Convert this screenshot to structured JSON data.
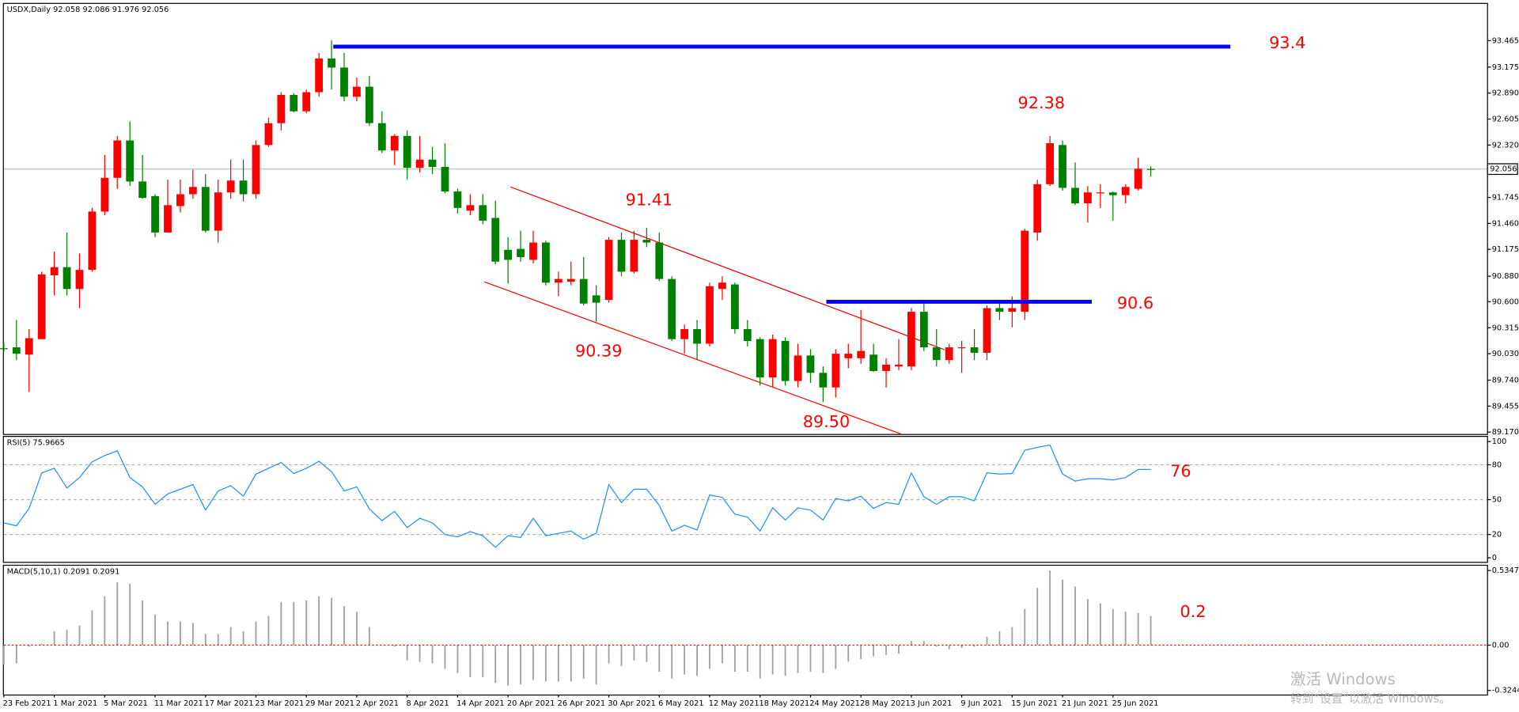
{
  "chart_data": [
    {
      "type": "candlestick",
      "title": "USDX,Daily  92.058 92.086 91.976 92.056",
      "categories": [
        "23 Feb 2021",
        null,
        null,
        null,
        "1 Mar 2021",
        null,
        null,
        null,
        "5 Mar 2021",
        null,
        null,
        null,
        "11 Mar 2021",
        null,
        null,
        null,
        "17 Mar 2021",
        null,
        null,
        null,
        "23 Mar 2021",
        null,
        null,
        null,
        "29 Mar 2021",
        null,
        null,
        null,
        "2 Apr 2021",
        null,
        null,
        null,
        "8 Apr 2021",
        null,
        null,
        null,
        "14 Apr 2021",
        null,
        null,
        null,
        "20 Apr 2021",
        null,
        null,
        null,
        "26 Apr 2021",
        null,
        null,
        null,
        "30 Apr 2021",
        null,
        null,
        null,
        "6 May 2021",
        null,
        null,
        null,
        "12 May 2021",
        null,
        null,
        null,
        "18 May 2021",
        null,
        null,
        null,
        "24 May 2021",
        null,
        null,
        null,
        "28 May 2021",
        null,
        null,
        null,
        "3 Jun 2021",
        null,
        null,
        null,
        "9 Jun 2021",
        null,
        null,
        null,
        "15 Jun 2021",
        null,
        null,
        null,
        "21 Jun 2021",
        null,
        null,
        null,
        "25 Jun 2021",
        null,
        null,
        null
      ],
      "open": [
        90.09,
        90.1,
        90.02,
        90.19,
        90.89,
        90.98,
        90.74,
        90.95,
        91.59,
        91.96,
        92.37,
        91.92,
        91.76,
        91.36,
        91.65,
        91.78,
        91.86,
        91.38,
        91.8,
        91.93,
        91.78,
        92.32,
        92.56,
        92.87,
        92.69,
        92.9,
        93.27,
        93.17,
        92.85,
        92.96,
        92.56,
        92.26,
        92.42,
        92.07,
        92.16,
        92.08,
        91.81,
        91.6,
        91.66,
        91.52,
        91.17,
        91.18,
        91.06,
        91.25,
        90.81,
        90.82,
        90.85,
        90.67,
        90.62,
        91.28,
        90.93,
        91.28,
        91.25,
        90.85,
        90.19,
        90.3,
        90.14,
        90.74,
        90.79,
        90.3,
        90.19,
        89.77,
        90.17,
        89.73,
        90.01,
        89.82,
        89.66,
        89.98,
        89.98,
        90.02,
        89.84,
        89.89,
        89.89,
        90.49,
        90.1,
        89.96,
        90.09,
        90.1,
        90.04,
        90.53,
        90.49,
        90.49,
        91.36,
        91.89,
        92.32,
        91.85,
        91.68,
        91.79,
        91.8,
        91.77,
        91.84,
        92.058
      ],
      "high": [
        90.15,
        90.4,
        90.3,
        90.93,
        91.15,
        91.36,
        91.13,
        91.63,
        92.21,
        92.42,
        92.58,
        92.21,
        91.78,
        91.94,
        91.94,
        92.05,
        92.0,
        91.94,
        92.16,
        92.16,
        92.37,
        92.62,
        92.9,
        92.89,
        92.93,
        93.33,
        93.47,
        93.33,
        93.06,
        93.08,
        92.69,
        92.44,
        92.48,
        92.42,
        92.3,
        92.34,
        91.84,
        91.78,
        91.78,
        91.71,
        91.31,
        91.38,
        91.38,
        91.27,
        90.93,
        91.04,
        91.09,
        90.78,
        91.31,
        91.36,
        91.38,
        91.41,
        91.36,
        90.88,
        90.35,
        90.4,
        90.81,
        90.88,
        90.81,
        90.4,
        90.21,
        90.24,
        90.21,
        90.14,
        90.08,
        89.89,
        90.08,
        90.14,
        90.51,
        90.14,
        89.98,
        90.19,
        90.53,
        90.59,
        90.3,
        90.14,
        90.17,
        90.3,
        90.56,
        90.62,
        90.66,
        91.4,
        91.94,
        92.42,
        92.37,
        92.13,
        91.87,
        91.89,
        91.81,
        91.89,
        92.18,
        92.086
      ],
      "low": [
        90.05,
        89.96,
        89.61,
        90.19,
        90.67,
        90.67,
        90.53,
        90.93,
        91.55,
        91.84,
        91.87,
        91.73,
        91.31,
        91.36,
        91.58,
        91.73,
        91.36,
        91.25,
        91.73,
        91.7,
        91.73,
        92.3,
        92.48,
        92.68,
        92.67,
        92.85,
        92.93,
        92.8,
        92.8,
        92.53,
        92.23,
        92.1,
        91.94,
        92.02,
        92.0,
        91.79,
        91.57,
        91.55,
        91.45,
        91.01,
        90.8,
        91.04,
        91.02,
        90.78,
        90.66,
        90.78,
        90.56,
        90.38,
        90.59,
        90.88,
        90.91,
        91.2,
        90.83,
        90.17,
        90.03,
        89.96,
        90.11,
        90.62,
        90.25,
        90.11,
        89.68,
        89.66,
        89.68,
        89.66,
        89.71,
        89.5,
        89.55,
        89.87,
        89.92,
        89.83,
        89.66,
        89.85,
        89.85,
        90.06,
        89.89,
        89.92,
        89.82,
        89.96,
        89.96,
        90.4,
        90.32,
        90.4,
        91.27,
        91.87,
        91.82,
        91.66,
        91.47,
        91.63,
        91.49,
        91.68,
        91.82,
        91.976
      ],
      "close": [
        90.08,
        90.03,
        90.2,
        90.9,
        90.98,
        90.74,
        90.95,
        91.59,
        91.96,
        92.37,
        91.92,
        91.74,
        91.36,
        91.66,
        91.78,
        91.86,
        91.38,
        91.8,
        91.93,
        91.78,
        92.32,
        92.56,
        92.87,
        92.69,
        92.9,
        93.27,
        93.17,
        92.85,
        92.96,
        92.56,
        92.26,
        92.42,
        92.07,
        92.16,
        92.08,
        91.81,
        91.63,
        91.66,
        91.49,
        91.04,
        91.06,
        91.09,
        91.25,
        90.81,
        90.85,
        90.85,
        90.58,
        90.59,
        91.28,
        90.93,
        91.28,
        91.25,
        90.85,
        90.19,
        90.3,
        90.14,
        90.77,
        90.81,
        90.3,
        90.17,
        89.77,
        90.19,
        89.73,
        90.01,
        89.82,
        89.66,
        90.03,
        90.03,
        90.06,
        89.84,
        89.91,
        89.91,
        90.49,
        90.1,
        89.96,
        90.1,
        90.1,
        90.04,
        90.53,
        90.49,
        90.53,
        91.38,
        91.89,
        92.34,
        91.85,
        91.68,
        91.8,
        91.8,
        91.77,
        91.86,
        92.06,
        92.056
      ],
      "up_color": "#ff0000",
      "down_color": "#008000",
      "ylim": [
        89.149,
        93.869
      ],
      "yticks": [
        93.465,
        93.175,
        {
          "value": 92.89,
          "label": "92.890"
        },
        92.605,
        {
          "value": 92.32,
          "label": "92.320"
        },
        91.745,
        {
          "value": 91.46,
          "label": "91.460"
        },
        91.175,
        {
          "value": 90.88,
          "label": "90.880"
        },
        {
          "value": 90.6,
          "label": "90.600"
        },
        90.315,
        {
          "value": 90.03,
          "label": "90.030"
        },
        {
          "value": 89.74,
          "label": "89.740"
        },
        89.455,
        {
          "value": 89.17,
          "label": "89.170"
        }
      ],
      "last_price": 92.056,
      "levels": [
        93.4,
        90.6
      ],
      "level_color": "#0000ff",
      "price_labels": [
        92.38,
        91.41,
        90.39,
        {
          "value": 89.5,
          "label": "89.50"
        }
      ],
      "label_color": "#ff0000"
    },
    {
      "type": "line",
      "title": "RSI(5) 75.9665",
      "values": [
        30,
        27.5,
        42.5,
        73,
        77,
        60,
        69,
        82.5,
        88,
        92,
        69,
        61,
        46,
        55,
        59,
        63,
        41,
        57.5,
        62,
        53,
        72,
        77,
        82,
        72.5,
        77,
        83,
        74,
        57.5,
        61,
        42,
        32,
        40,
        26,
        34,
        30,
        20,
        18,
        22.5,
        19,
        9,
        19,
        17.5,
        34,
        19,
        21,
        23,
        16,
        21,
        63,
        47.5,
        59,
        59,
        45,
        23,
        28,
        24,
        54,
        52,
        37.5,
        35,
        23,
        43,
        32.5,
        43,
        41,
        32.5,
        51,
        49,
        53,
        42.5,
        47.5,
        46,
        73,
        52.5,
        46,
        52.5,
        52.5,
        49,
        73,
        72,
        72.5,
        92.5,
        95,
        97,
        72,
        66,
        68,
        68,
        67,
        69,
        76,
        75.97
      ],
      "color": "#1e90ff",
      "ylim": [
        -3.5,
        104
      ],
      "yticks": [
        0,
        20,
        50,
        80,
        100
      ],
      "levels": [
        20,
        50,
        80
      ],
      "annotation": 76
    },
    {
      "type": "bar",
      "title": "MACD(5,10,1) 0.2091 0.2091",
      "values": [
        -0.14,
        -0.13,
        -0.01,
        0.01,
        0.1,
        0.11,
        0.14,
        0.25,
        0.35,
        0.45,
        0.44,
        0.32,
        0.22,
        0.17,
        0.17,
        0.16,
        0.08,
        0.08,
        0.13,
        0.1,
        0.17,
        0.21,
        0.31,
        0.31,
        0.32,
        0.35,
        0.34,
        0.28,
        0.24,
        0.13,
        0.0,
        -0.01,
        -0.11,
        -0.12,
        -0.13,
        -0.17,
        -0.2,
        -0.23,
        -0.23,
        -0.27,
        -0.29,
        -0.28,
        -0.25,
        -0.26,
        -0.26,
        -0.26,
        -0.24,
        -0.28,
        -0.13,
        -0.15,
        -0.11,
        -0.12,
        -0.19,
        -0.24,
        -0.21,
        -0.22,
        -0.17,
        -0.13,
        -0.19,
        -0.19,
        -0.24,
        -0.21,
        -0.22,
        -0.2,
        -0.19,
        -0.2,
        -0.17,
        -0.12,
        -0.1,
        -0.08,
        -0.07,
        -0.06,
        0.03,
        0.03,
        -0.01,
        -0.03,
        -0.02,
        -0.01,
        0.06,
        0.1,
        0.13,
        0.26,
        0.41,
        0.5347,
        0.47,
        0.42,
        0.33,
        0.3,
        0.26,
        0.24,
        0.23,
        0.2091
      ],
      "color": "#a0a0a0",
      "signal_color": "#ff0000",
      "ylim": [
        -0.354,
        0.569
      ],
      "yticks": [
        0.5347,
        {
          "value": 0,
          "label": "0.00"
        },
        -0.3244
      ],
      "annotation": 0.2
    }
  ],
  "watermark": {
    "line1": "激活 Windows",
    "line2": "转到“设置”以激活 Windows。"
  }
}
